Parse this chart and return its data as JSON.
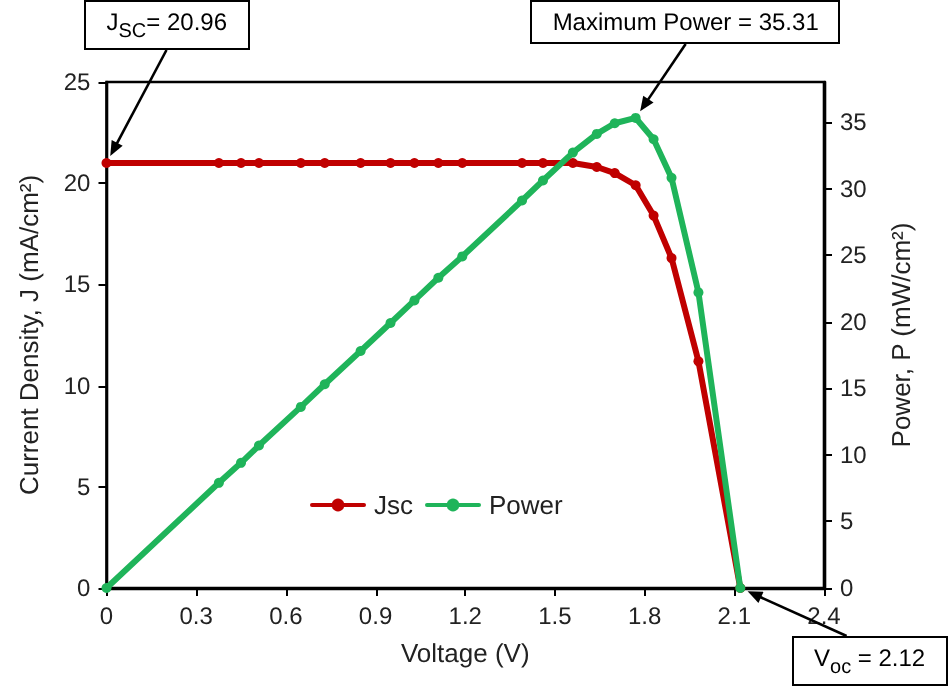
{
  "chart_data": {
    "type": "line",
    "xlabel": "Voltage (V)",
    "ylabel": "Current Density, J (mA/cm²)",
    "y2label": "Power, P (mW/cm²)",
    "x": [
      0,
      0.376,
      0.45,
      0.51,
      0.65,
      0.73,
      0.85,
      0.95,
      1.03,
      1.11,
      1.19,
      1.39,
      1.46,
      1.56,
      1.64,
      1.7,
      1.77,
      1.83,
      1.89,
      1.98,
      2.12
    ],
    "series": [
      {
        "name": "Jsc",
        "color": "#c00000",
        "values": [
          21,
          21,
          21,
          21,
          21,
          21,
          21,
          21,
          21,
          21,
          21,
          21,
          21,
          21,
          20.8,
          20.5,
          19.9,
          18.4,
          16.3,
          11.2,
          0
        ]
      },
      {
        "name": "Power",
        "color": "#1fb45a",
        "axis": "y2",
        "values": [
          0,
          7.9,
          9.4,
          10.7,
          13.6,
          15.3,
          17.8,
          19.9,
          21.6,
          23.3,
          24.9,
          29.1,
          30.6,
          32.7,
          34.1,
          34.9,
          35.3,
          33.7,
          30.8,
          22.2,
          0
        ]
      }
    ],
    "xlim": [
      0,
      2.4
    ],
    "xticks": [
      0,
      0.3,
      0.6,
      0.9,
      1.2,
      1.5,
      1.8,
      2.1,
      2.4
    ],
    "ylim": [
      0,
      25
    ],
    "yticks": [
      0,
      5,
      10,
      15,
      20,
      25
    ],
    "y2lim": [
      0,
      38
    ],
    "y2ticks": [
      0,
      5,
      10,
      15,
      20,
      25,
      30,
      35
    ],
    "annotations": [
      "J$_{SC}$= 20.96",
      "Maximum Power = 35.31",
      "V$_{oc}$ = 2.12"
    ],
    "legend": "bottom",
    "marker": "circle",
    "line_style": "solid",
    "grid": false
  }
}
